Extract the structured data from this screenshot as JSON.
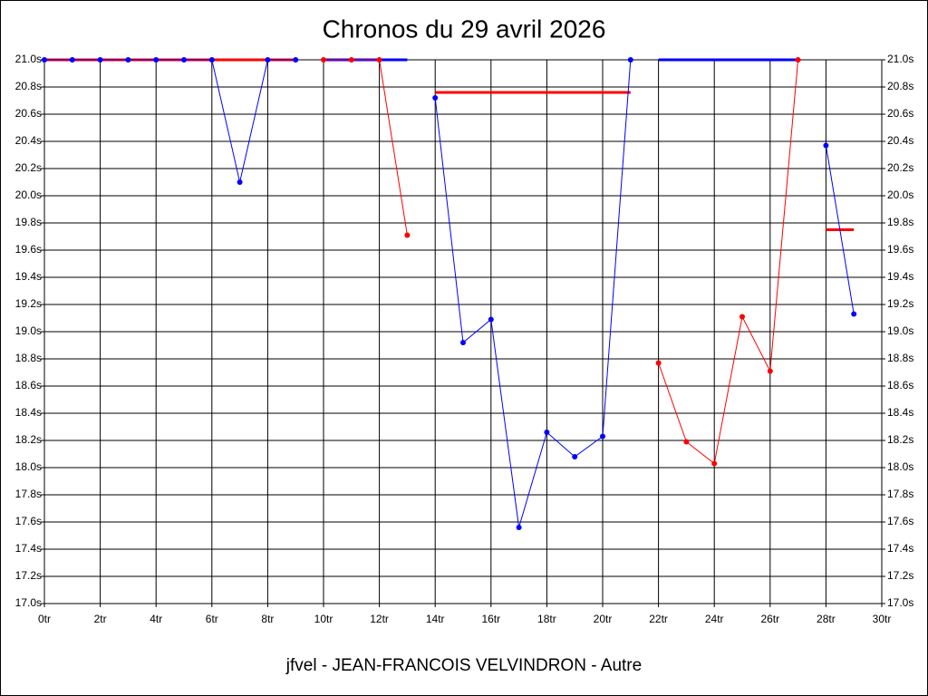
{
  "chart_data": {
    "type": "line",
    "title": "Chronos du 29 avril 2026",
    "footer": "jfvel - JEAN-FRANCOIS VELVINDRON - Autre",
    "x": [
      0,
      1,
      2,
      3,
      4,
      5,
      6,
      7,
      8,
      9,
      10,
      11,
      12,
      13,
      14,
      15,
      16,
      17,
      18,
      19,
      20,
      21,
      22,
      23,
      24,
      25,
      26,
      27,
      28,
      29
    ],
    "series": [
      {
        "color": "#ff0000",
        "markers": false,
        "line_width": 3,
        "values": [
          21.0,
          21.0,
          21.0,
          21.0,
          21.0,
          21.0,
          21.0,
          21.0,
          21.0,
          21.0,
          null,
          null,
          null,
          null,
          20.76,
          20.76,
          20.76,
          20.76,
          20.76,
          20.76,
          20.76,
          20.76,
          null,
          null,
          null,
          null,
          null,
          null,
          19.75,
          19.75
        ]
      },
      {
        "color": "#0000ff",
        "markers": false,
        "line_width": 3,
        "values": [
          null,
          null,
          null,
          null,
          null,
          null,
          null,
          null,
          null,
          null,
          21.0,
          21.0,
          21.0,
          21.0,
          null,
          null,
          null,
          null,
          null,
          null,
          null,
          null,
          21.0,
          21.0,
          21.0,
          21.0,
          21.0,
          21.0,
          null,
          null
        ]
      },
      {
        "color": "#0000ff",
        "markers": true,
        "line_width": 1,
        "values": [
          21.0,
          21.0,
          21.0,
          21.0,
          21.0,
          21.0,
          21.0,
          20.1,
          21.0,
          21.0,
          null,
          null,
          null,
          null,
          20.72,
          18.92,
          19.09,
          17.56,
          18.26,
          18.08,
          18.23,
          21.0,
          null,
          null,
          null,
          null,
          null,
          null,
          20.37,
          19.13
        ]
      },
      {
        "color": "#ff0000",
        "markers": true,
        "line_width": 1,
        "values": [
          null,
          null,
          null,
          null,
          null,
          null,
          null,
          null,
          null,
          null,
          21.0,
          21.0,
          21.0,
          19.71,
          null,
          null,
          null,
          null,
          null,
          null,
          null,
          null,
          18.77,
          18.19,
          18.03,
          19.11,
          18.71,
          21.0,
          null,
          null
        ]
      }
    ],
    "xlim": [
      0,
      30
    ],
    "xticks": [
      {
        "value": 0,
        "label": "0tr"
      },
      {
        "value": 2,
        "label": "2tr"
      },
      {
        "value": 4,
        "label": "4tr"
      },
      {
        "value": 6,
        "label": "6tr"
      },
      {
        "value": 8,
        "label": "8tr"
      },
      {
        "value": 10,
        "label": "10tr"
      },
      {
        "value": 12,
        "label": "12tr"
      },
      {
        "value": 14,
        "label": "14tr"
      },
      {
        "value": 16,
        "label": "16tr"
      },
      {
        "value": 18,
        "label": "18tr"
      },
      {
        "value": 20,
        "label": "20tr"
      },
      {
        "value": 22,
        "label": "22tr"
      },
      {
        "value": 24,
        "label": "24tr"
      },
      {
        "value": 26,
        "label": "26tr"
      },
      {
        "value": 28,
        "label": "28tr"
      },
      {
        "value": 30,
        "label": "30tr"
      }
    ],
    "ylim": [
      17.0,
      21.0
    ],
    "yticks": [
      {
        "value": 17.0,
        "label": "17.0s"
      },
      {
        "value": 17.2,
        "label": "17.2s"
      },
      {
        "value": 17.4,
        "label": "17.4s"
      },
      {
        "value": 17.6,
        "label": "17.6s"
      },
      {
        "value": 17.8,
        "label": "17.8s"
      },
      {
        "value": 18.0,
        "label": "18.0s"
      },
      {
        "value": 18.2,
        "label": "18.2s"
      },
      {
        "value": 18.4,
        "label": "18.4s"
      },
      {
        "value": 18.6,
        "label": "18.6s"
      },
      {
        "value": 18.8,
        "label": "18.8s"
      },
      {
        "value": 19.0,
        "label": "19.0s"
      },
      {
        "value": 19.2,
        "label": "19.2s"
      },
      {
        "value": 19.4,
        "label": "19.4s"
      },
      {
        "value": 19.6,
        "label": "19.6s"
      },
      {
        "value": 19.8,
        "label": "19.8s"
      },
      {
        "value": 20.0,
        "label": "20.0s"
      },
      {
        "value": 20.2,
        "label": "20.2s"
      },
      {
        "value": 20.4,
        "label": "20.4s"
      },
      {
        "value": 20.6,
        "label": "20.6s"
      },
      {
        "value": 20.8,
        "label": "20.8s"
      },
      {
        "value": 21.0,
        "label": "21.0s"
      }
    ],
    "grid": true,
    "right_axis_labels": true
  }
}
